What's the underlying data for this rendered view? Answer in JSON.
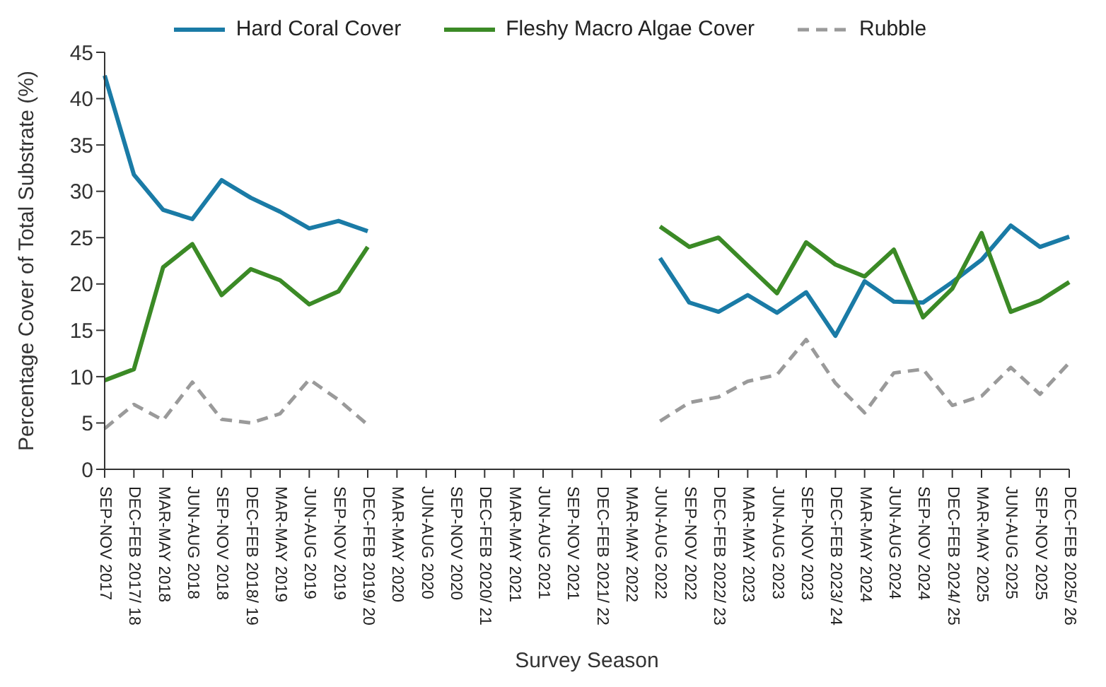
{
  "chart_data": {
    "type": "line",
    "xlabel": "Survey Season",
    "ylabel": "Percentage Cover of Total Substrate (%)",
    "categories": [
      "SEP-NOV 2017",
      "DEC-FEB 2017/ 18",
      "MAR-MAY 2018",
      "JUN-AUG 2018",
      "SEP-NOV 2018",
      "DEC-FEB 2018/ 19",
      "MAR-MAY 2019",
      "JUN-AUG 2019",
      "SEP-NOV 2019",
      "DEC-FEB 2019/ 20",
      "MAR-MAY 2020",
      "JUN-AUG 2020",
      "SEP-NOV 2020",
      "DEC-FEB 2020/ 21",
      "MAR-MAY 2021",
      "JUN-AUG 2021",
      "SEP-NOV 2021",
      "DEC-FEB 2021/ 22",
      "MAR-MAY 2022",
      "JUN-AUG 2022",
      "SEP-NOV 2022",
      "DEC-FEB 2022/ 23",
      "MAR-MAY 2023",
      "JUN-AUG 2023",
      "SEP-NOV 2023",
      "DEC-FEB 2023/ 24",
      "MAR-MAY 2024",
      "JUN-AUG 2024",
      "SEP-NOV 2024",
      "DEC-FEB 2024/ 25",
      "MAR-MAY 2025",
      "JUN-AUG 2025",
      "SEP-NOV 2025",
      "DEC-FEB 2025/ 26"
    ],
    "series": [
      {
        "name": "Hard Coral Cover",
        "color": "#1a7ba6",
        "line_style": "solid",
        "values": [
          42.5,
          31.8,
          28,
          27,
          31.2,
          29.3,
          27.8,
          26,
          26.8,
          25.7,
          null,
          null,
          null,
          null,
          null,
          null,
          null,
          null,
          null,
          22.8,
          18,
          17,
          18.8,
          16.9,
          19.1,
          14.4,
          20.3,
          18.1,
          18,
          20.2,
          22.6,
          26.3,
          24,
          25.1
        ]
      },
      {
        "name": "Fleshy Macro Algae Cover",
        "color": "#3b8a26",
        "line_style": "solid",
        "values": [
          9.6,
          10.8,
          21.8,
          24.3,
          18.8,
          21.6,
          20.4,
          17.8,
          19.2,
          24,
          null,
          null,
          null,
          null,
          null,
          null,
          null,
          null,
          null,
          26.2,
          24,
          25,
          22,
          19,
          24.5,
          22.1,
          20.8,
          23.7,
          16.4,
          19.5,
          25.5,
          17,
          18.2,
          20.2
        ]
      },
      {
        "name": "Rubble",
        "color": "#9a9a9a",
        "line_style": "dashed",
        "values": [
          4.4,
          7,
          5.3,
          9.4,
          5.4,
          5,
          6,
          9.7,
          7.5,
          4.8,
          null,
          null,
          null,
          null,
          null,
          null,
          null,
          null,
          null,
          5.2,
          7.2,
          7.8,
          9.5,
          10.2,
          14,
          9.3,
          6.1,
          10.4,
          10.8,
          6.9,
          7.9,
          11,
          8.1,
          11.5
        ]
      }
    ],
    "ylim": [
      0,
      45
    ],
    "yticks": [
      0,
      5,
      10,
      15,
      20,
      25,
      30,
      35,
      40,
      45
    ],
    "legend": "top",
    "marker": "none"
  }
}
